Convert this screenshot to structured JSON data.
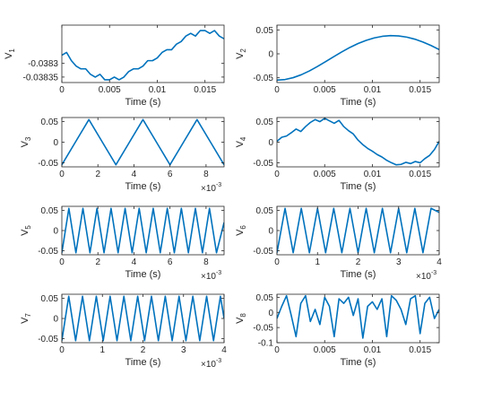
{
  "figure": {
    "background": "#ffffff",
    "line_color": "#0072bd",
    "axis_color": "#262626"
  },
  "chart_data": [
    {
      "type": "line",
      "id": "v1",
      "ylabel_main": "V",
      "ylabel_sub": "1",
      "xlabel": "Time (s)",
      "xlim": [
        0,
        0.017
      ],
      "ylim": [
        -0.03837,
        -0.03816
      ],
      "xticks": [
        0,
        0.005,
        0.01,
        0.015
      ],
      "xtick_labels": [
        "0",
        "0.005",
        "0.01",
        "0.015"
      ],
      "yticks": [
        -0.03835,
        -0.0383
      ],
      "ytick_labels": [
        "-0.03835",
        "-0.0383"
      ],
      "x_multiplier": "",
      "x_multiplier_exp": "",
      "x": [
        0,
        0.0005,
        0.001,
        0.0015,
        0.002,
        0.0025,
        0.003,
        0.0035,
        0.004,
        0.0045,
        0.005,
        0.0055,
        0.006,
        0.0065,
        0.007,
        0.0075,
        0.008,
        0.0085,
        0.009,
        0.0095,
        0.01,
        0.0105,
        0.011,
        0.0115,
        0.012,
        0.0125,
        0.013,
        0.0135,
        0.014,
        0.0145,
        0.015,
        0.0155,
        0.016,
        0.0165,
        0.017
      ],
      "y": [
        -0.03827,
        -0.03826,
        -0.03829,
        -0.03831,
        -0.03832,
        -0.03832,
        -0.03834,
        -0.03835,
        -0.03834,
        -0.03836,
        -0.03836,
        -0.03835,
        -0.03836,
        -0.03835,
        -0.03833,
        -0.03832,
        -0.03832,
        -0.03831,
        -0.03829,
        -0.03829,
        -0.03828,
        -0.03826,
        -0.03825,
        -0.03825,
        -0.03823,
        -0.03822,
        -0.0382,
        -0.03819,
        -0.0382,
        -0.03818,
        -0.03818,
        -0.03819,
        -0.03818,
        -0.0382,
        -0.03821
      ]
    },
    {
      "type": "line",
      "id": "v2",
      "ylabel_main": "V",
      "ylabel_sub": "2",
      "xlabel": "Time (s)",
      "xlim": [
        0,
        0.017
      ],
      "ylim": [
        -0.06,
        0.06
      ],
      "xticks": [
        0,
        0.005,
        0.01,
        0.015
      ],
      "xtick_labels": [
        "0",
        "0.005",
        "0.01",
        "0.015"
      ],
      "yticks": [
        -0.05,
        0,
        0.05
      ],
      "ytick_labels": [
        "-0.05",
        "0",
        "0.05"
      ],
      "x_multiplier": "",
      "x_multiplier_exp": "",
      "x": [
        0,
        0.00085,
        0.0017,
        0.00255,
        0.0034,
        0.00425,
        0.0051,
        0.00595,
        0.0068,
        0.00765,
        0.0085,
        0.00935,
        0.0102,
        0.01105,
        0.0119,
        0.01275,
        0.0136,
        0.01445,
        0.0153,
        0.01615,
        0.017
      ],
      "y": [
        -0.055,
        -0.0537,
        -0.0498,
        -0.0437,
        -0.0357,
        -0.0264,
        -0.0163,
        -0.0059,
        0.0041,
        0.0134,
        0.0215,
        0.0282,
        0.0333,
        0.0366,
        0.038,
        0.0374,
        0.0349,
        0.0306,
        0.0246,
        0.0173,
        0.0088
      ]
    },
    {
      "type": "line",
      "id": "v3",
      "ylabel_main": "V",
      "ylabel_sub": "3",
      "xlabel": "Time (s)",
      "xlim": [
        0,
        0.009
      ],
      "ylim": [
        -0.06,
        0.06
      ],
      "xticks": [
        0,
        0.002,
        0.004,
        0.006,
        0.008
      ],
      "xtick_labels": [
        "0",
        "2",
        "4",
        "6",
        "8"
      ],
      "yticks": [
        -0.05,
        0,
        0.05
      ],
      "ytick_labels": [
        "-0.05",
        "0",
        "0.05"
      ],
      "x_multiplier": "×10",
      "x_multiplier_exp": "-3",
      "x": [
        0,
        0.00075,
        0.0015,
        0.00225,
        0.003,
        0.00375,
        0.0045,
        0.00525,
        0.006,
        0.00675,
        0.0075,
        0.00825,
        0.009
      ],
      "y": [
        -0.055,
        0,
        0.055,
        0,
        -0.055,
        0,
        0.055,
        0,
        -0.055,
        0,
        0.055,
        0,
        -0.055
      ]
    },
    {
      "type": "line",
      "id": "v4",
      "ylabel_main": "V",
      "ylabel_sub": "4",
      "xlabel": "Time (s)",
      "xlim": [
        0,
        0.017
      ],
      "ylim": [
        -0.06,
        0.06
      ],
      "xticks": [
        0,
        0.005,
        0.01,
        0.015
      ],
      "xtick_labels": [
        "0",
        "0.005",
        "0.01",
        "0.015"
      ],
      "yticks": [
        -0.05,
        0,
        0.05
      ],
      "ytick_labels": [
        "-0.05",
        "0",
        "0.05"
      ],
      "x_multiplier": "",
      "x_multiplier_exp": "",
      "x": [
        0,
        0.0005,
        0.001,
        0.0015,
        0.002,
        0.0025,
        0.003,
        0.0035,
        0.004,
        0.0045,
        0.005,
        0.0055,
        0.006,
        0.0065,
        0.007,
        0.0075,
        0.008,
        0.0085,
        0.009,
        0.0095,
        0.01,
        0.0105,
        0.011,
        0.0115,
        0.012,
        0.0125,
        0.013,
        0.0135,
        0.014,
        0.0145,
        0.015,
        0.0155,
        0.016,
        0.0165,
        0.017
      ],
      "y": [
        0.002,
        0.012,
        0.015,
        0.023,
        0.032,
        0.026,
        0.038,
        0.048,
        0.055,
        0.05,
        0.058,
        0.052,
        0.046,
        0.053,
        0.038,
        0.028,
        0.02,
        0.005,
        -0.006,
        -0.015,
        -0.022,
        -0.03,
        -0.036,
        -0.044,
        -0.05,
        -0.055,
        -0.054,
        -0.049,
        -0.052,
        -0.047,
        -0.05,
        -0.04,
        -0.032,
        -0.018,
        0.002
      ]
    },
    {
      "type": "line",
      "id": "v5",
      "ylabel_main": "V",
      "ylabel_sub": "5",
      "xlabel": "Time (s)",
      "xlim": [
        0,
        0.009
      ],
      "ylim": [
        -0.06,
        0.06
      ],
      "xticks": [
        0,
        0.002,
        0.004,
        0.006,
        0.008
      ],
      "xtick_labels": [
        "0",
        "2",
        "4",
        "6",
        "8"
      ],
      "yticks": [
        -0.05,
        0,
        0.05
      ],
      "ytick_labels": [
        "-0.05",
        "0",
        "0.05"
      ],
      "x_multiplier": "×10",
      "x_multiplier_exp": "-3",
      "x": [
        0,
        0.00039,
        0.00078,
        0.00117,
        0.00156,
        0.00195,
        0.00234,
        0.00273,
        0.00312,
        0.00351,
        0.0039,
        0.00429,
        0.00468,
        0.00507,
        0.00546,
        0.00585,
        0.00624,
        0.00663,
        0.00702,
        0.00741,
        0.0078,
        0.00819,
        0.00858,
        0.009
      ],
      "y": [
        -0.055,
        0.055,
        -0.055,
        0.055,
        -0.055,
        0.055,
        -0.055,
        0.055,
        -0.055,
        0.055,
        -0.055,
        0.055,
        -0.055,
        0.055,
        -0.055,
        0.055,
        -0.055,
        0.055,
        -0.055,
        0.055,
        -0.055,
        0.055,
        -0.055,
        0.02
      ]
    },
    {
      "type": "line",
      "id": "v6",
      "ylabel_main": "V",
      "ylabel_sub": "6",
      "xlabel": "Time (s)",
      "xlim": [
        0,
        0.004
      ],
      "ylim": [
        -0.06,
        0.06
      ],
      "xticks": [
        0,
        0.001,
        0.002,
        0.003,
        0.004
      ],
      "xtick_labels": [
        "0",
        "1",
        "2",
        "3",
        "4"
      ],
      "yticks": [
        -0.05,
        0,
        0.05
      ],
      "ytick_labels": [
        "-0.05",
        "0",
        "0.05"
      ],
      "x_multiplier": "×10",
      "x_multiplier_exp": "-3",
      "x": [
        0,
        0.0002,
        0.0004,
        0.0006,
        0.0008,
        0.001,
        0.0012,
        0.0014,
        0.0016,
        0.0018,
        0.002,
        0.0022,
        0.0024,
        0.0026,
        0.0028,
        0.003,
        0.0032,
        0.0034,
        0.0036,
        0.0038,
        0.004
      ],
      "y": [
        -0.055,
        0.055,
        -0.055,
        0.055,
        -0.055,
        0.055,
        -0.055,
        0.055,
        -0.055,
        0.055,
        -0.055,
        0.055,
        -0.055,
        0.055,
        -0.055,
        0.055,
        -0.055,
        0.055,
        -0.055,
        0.055,
        0.045
      ]
    },
    {
      "type": "line",
      "id": "v7",
      "ylabel_main": "V",
      "ylabel_sub": "7",
      "xlabel": "Time (s)",
      "xlim": [
        0,
        0.004
      ],
      "ylim": [
        -0.06,
        0.06
      ],
      "xticks": [
        0,
        0.001,
        0.002,
        0.003,
        0.004
      ],
      "xtick_labels": [
        "0",
        "1",
        "2",
        "3",
        "4"
      ],
      "yticks": [
        -0.05,
        0,
        0.05
      ],
      "ytick_labels": [
        "-0.05",
        "0",
        "0.05"
      ],
      "x_multiplier": "×10",
      "x_multiplier_exp": "-3",
      "x": [
        0,
        0.00017,
        0.00034,
        0.00051,
        0.00068,
        0.00085,
        0.00102,
        0.00119,
        0.00136,
        0.00153,
        0.0017,
        0.00187,
        0.00204,
        0.00221,
        0.00238,
        0.00255,
        0.00272,
        0.00289,
        0.00306,
        0.00323,
        0.0034,
        0.00357,
        0.00374,
        0.00391,
        0.004
      ],
      "y": [
        -0.055,
        0.055,
        -0.055,
        0.055,
        -0.055,
        0.055,
        -0.055,
        0.055,
        -0.055,
        0.055,
        -0.055,
        0.055,
        -0.055,
        0.055,
        -0.055,
        0.055,
        -0.055,
        0.055,
        -0.055,
        0.055,
        -0.055,
        0.055,
        -0.055,
        0.055,
        0.0
      ]
    },
    {
      "type": "line",
      "id": "v8",
      "ylabel_main": "V",
      "ylabel_sub": "8",
      "xlabel": "Time (s)",
      "xlim": [
        0,
        0.017
      ],
      "ylim": [
        -0.1,
        0.06
      ],
      "xticks": [
        0,
        0.005,
        0.01,
        0.015
      ],
      "xtick_labels": [
        "0",
        "0.005",
        "0.01",
        "0.015"
      ],
      "yticks": [
        -0.1,
        -0.05,
        0,
        0.05
      ],
      "ytick_labels": [
        "-0.1",
        "-0.05",
        "0",
        "0.05"
      ],
      "x_multiplier": "",
      "x_multiplier_exp": "",
      "x": [
        0,
        0.0005,
        0.001,
        0.0015,
        0.002,
        0.0025,
        0.003,
        0.0035,
        0.004,
        0.0045,
        0.005,
        0.0055,
        0.006,
        0.0065,
        0.007,
        0.0075,
        0.008,
        0.0085,
        0.009,
        0.0095,
        0.01,
        0.0105,
        0.011,
        0.0115,
        0.012,
        0.0125,
        0.013,
        0.0135,
        0.014,
        0.0145,
        0.015,
        0.0155,
        0.016,
        0.0165,
        0.017
      ],
      "y": [
        -0.02,
        0.02,
        0.055,
        -0.01,
        -0.08,
        0.03,
        0.055,
        -0.03,
        0.01,
        -0.04,
        0.05,
        0.02,
        -0.08,
        0.045,
        0.03,
        0.05,
        -0.01,
        0.045,
        -0.085,
        0.02,
        0.035,
        0.01,
        0.045,
        -0.08,
        0.055,
        0.04,
        0.01,
        -0.04,
        0.045,
        0.055,
        -0.07,
        0.03,
        0.05,
        -0.02,
        0.01
      ]
    }
  ]
}
